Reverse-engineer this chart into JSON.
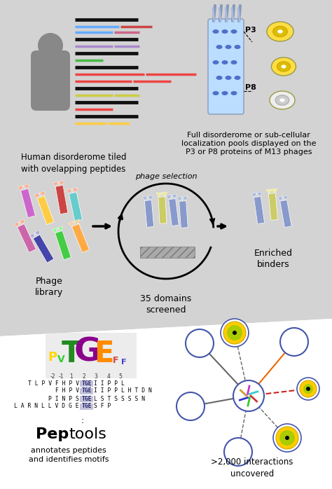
{
  "fig_width": 4.74,
  "fig_height": 6.98,
  "dpi": 100,
  "gray_bg": "#d0d0d0",
  "white_bg": "#ffffff",
  "texts": {
    "human_disorderome": "Human disorderome tiled\nwith ovelapping peptides",
    "phage_display_1": "Full disorderome or sub-cellular",
    "phage_display_2": "localization pools displayed on the",
    "phage_display_3": "P3 or P8 proteins of M13 phages",
    "phage_library": "Phage\nlibrary",
    "domains_screened": "35 domains\nscreened",
    "enriched_binders": "Enriched\nbinders",
    "phage_selection": "phage selection",
    "p3": "P3",
    "p8": "P8",
    "interactions": ">2,000 interactions\nuncovered",
    "annotates": "annotates peptides\nand identifies motifs",
    "ellipsis": "...",
    "peptide_before": [
      "T L P V F H P V",
      "F H P V",
      "P I N P S",
      "L A R N L L V D G E"
    ],
    "peptide_tge": [
      "TGE",
      "TGE",
      "TGE",
      "TGE"
    ],
    "peptide_after": [
      "I I P P L",
      "I I P P L H T D N",
      "L S T S S S S N",
      "S F P"
    ],
    "logo_numbers": [
      "-2",
      "-1",
      "1",
      "2",
      "3",
      "4",
      "5"
    ]
  },
  "colors": {
    "gray_person": "#888888",
    "phage_lib": [
      "#cc66cc",
      "#ffcc66",
      "#cc4444",
      "#4444cc",
      "#44cc44",
      "#66cccc",
      "#cc66cc",
      "#ffaa44",
      "#8888dd"
    ],
    "phage_enr": [
      "#8899cc",
      "#cccc88",
      "#8899cc"
    ],
    "phage_inner": [
      "#8899cc",
      "#cccc88",
      "#8899cc",
      "#8899cc"
    ],
    "stripe_colors_full": [
      [
        "#111111",
        "#66aaff",
        "#cc4444",
        "#111111",
        "#aa88cc",
        "#111111",
        "#44bb44",
        "#111111",
        "#ee4444",
        "#111111",
        "#ffcc44",
        "#111111"
      ],
      [
        "#66aaff",
        "#cc6688",
        "#111111",
        "#aa88cc",
        "#cccc44"
      ],
      [
        "#66aaff",
        "#cc6688",
        "#111111",
        "#aa88cc",
        "#cccc44"
      ],
      [
        "#111111",
        "#66aaff",
        "#cc4444",
        "#111111"
      ],
      [
        "#111111",
        "#aa88cc",
        "#aa88cc",
        "#111111"
      ],
      [
        "#111111",
        "#cccc44",
        "#cccc44",
        "#111111"
      ],
      [
        "#ee4444",
        "#ee4444",
        "#111111"
      ],
      [
        "#ffcc44",
        "#ffcc44",
        "#111111"
      ]
    ],
    "T_color": "#228B22",
    "G_color": "#8B008B",
    "E_color": "#FF8C00",
    "P_color": "#FFD700",
    "V_color": "#32CD32",
    "node_blue": "#4455aa",
    "node_yellow_outer": "#ffcc00",
    "node_yellow_inner": "#aacc00",
    "line_orange": "#ee6600",
    "line_red": "#cc2222",
    "line_gray_solid": "#555555",
    "line_gray_dashed": "#777777",
    "tge_bg": "#aaaacc",
    "tge_text": "#222266"
  }
}
